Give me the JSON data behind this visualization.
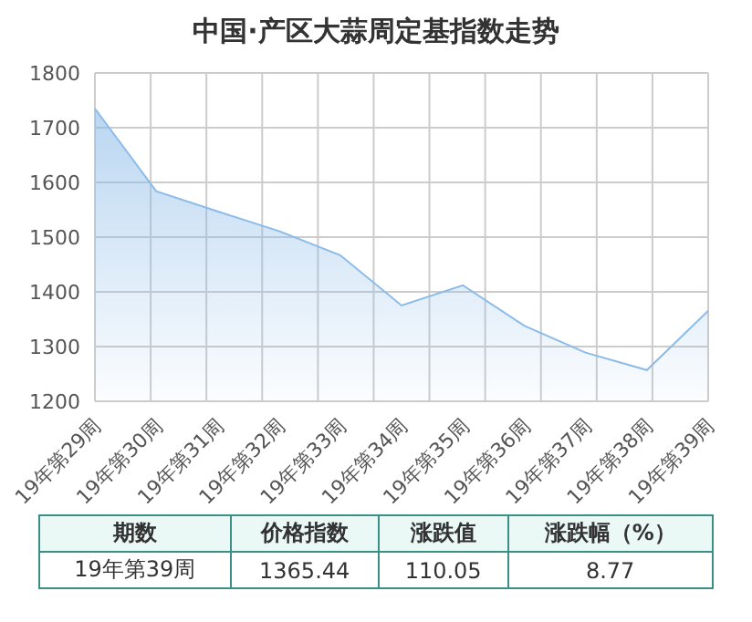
{
  "chart_data": {
    "type": "area",
    "title": "中国·产区大蒜周定基指数走势",
    "categories": [
      "19年第29周",
      "19年第30周",
      "19年第31周",
      "19年第32周",
      "19年第33周",
      "19年第34周",
      "19年第35周",
      "19年第36周",
      "19年第37周",
      "19年第38周",
      "19年第39周"
    ],
    "values": [
      1735,
      1584,
      1547,
      1511,
      1467,
      1375,
      1412,
      1338,
      1289,
      1257,
      1365.44
    ],
    "color": "#8bbbe8",
    "ylim": [
      1200,
      1800
    ],
    "yticks": [
      1200,
      1300,
      1400,
      1500,
      1600,
      1700,
      1800
    ],
    "grid": true,
    "annotations": [
      "期数",
      "价格指数",
      "涨跌值",
      "涨跌幅（%）",
      "19年第39周",
      "1365.44",
      "110.05",
      "8.77"
    ]
  }
}
